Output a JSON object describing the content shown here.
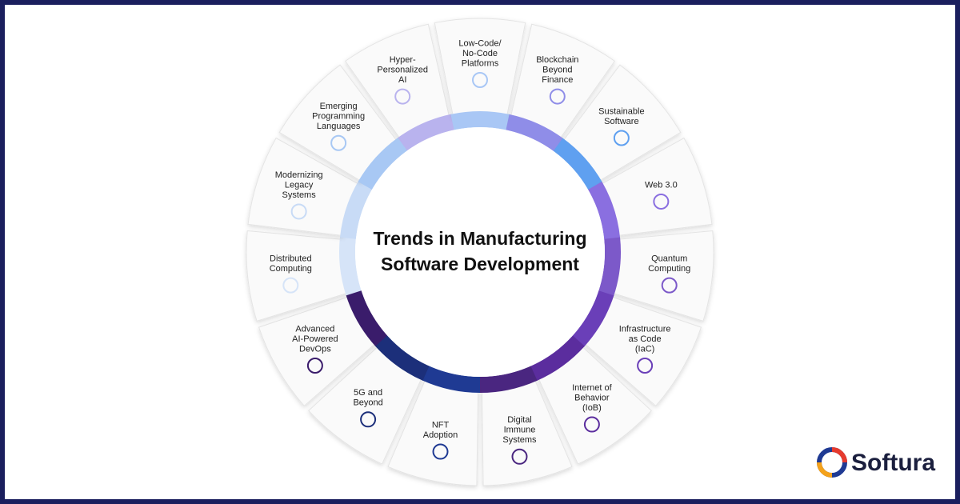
{
  "title": [
    "Trends in Manufacturing",
    "Software Development"
  ],
  "segments": [
    {
      "label": [
        "Hyper-",
        "Personalized",
        "AI"
      ],
      "color": "#b9b3ee"
    },
    {
      "label": [
        "Low-Code/",
        "No-Code",
        "Platforms"
      ],
      "color": "#a9c7f5"
    },
    {
      "label": [
        "Blockchain",
        "Beyond",
        "Finance"
      ],
      "color": "#8f8de8"
    },
    {
      "label": [
        "Sustainable",
        "Software"
      ],
      "color": "#5fa0f0"
    },
    {
      "label": [
        "Web 3.0"
      ],
      "color": "#8a6fe0"
    },
    {
      "label": [
        "Quantum",
        "Computing"
      ],
      "color": "#7c59c9"
    },
    {
      "label": [
        "Infrastructure",
        "as Code",
        "(IaC)"
      ],
      "color": "#6a3fb8"
    },
    {
      "label": [
        "Internet of",
        "Behavior",
        "(IoB)"
      ],
      "color": "#5b2d9e"
    },
    {
      "label": [
        "Digital",
        "Immune",
        "Systems"
      ],
      "color": "#4a2680"
    },
    {
      "label": [
        "NFT",
        "Adoption"
      ],
      "color": "#1f3a93"
    },
    {
      "label": [
        "5G and",
        "Beyond"
      ],
      "color": "#1c2f7a"
    },
    {
      "label": [
        "Advanced",
        "AI-Powered",
        "DevOps"
      ],
      "color": "#3a1c6b"
    },
    {
      "label": [
        "Distributed",
        "Computing"
      ],
      "color": "#d6e4f8"
    },
    {
      "label": [
        "Modernizing",
        "Legacy",
        "Systems"
      ],
      "color": "#c8dbf6"
    },
    {
      "label": [
        "Emerging",
        "Programming",
        "Languages"
      ],
      "color": "#a8c8f4"
    }
  ],
  "logo": "Softura"
}
